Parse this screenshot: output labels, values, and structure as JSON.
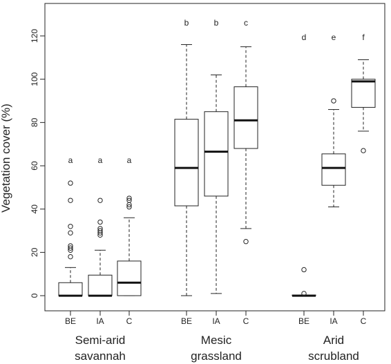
{
  "chart_data": {
    "type": "boxplot",
    "ylabel": "Vegetation cover (%)",
    "xlabel": "",
    "ylim": [
      -7,
      135
    ],
    "yticks": [
      0,
      20,
      40,
      60,
      80,
      100,
      120
    ],
    "grid": false,
    "groups": [
      {
        "name_lines": [
          "Semi-arid",
          "savannah"
        ],
        "boxes": [
          {
            "category": "BE",
            "letter": "a",
            "whisker_low": 0,
            "q1": 0,
            "median": 0,
            "q3": 6,
            "whisker_high": 13,
            "outliers": [
              18,
              21,
              22,
              23,
              29,
              32,
              44,
              52
            ]
          },
          {
            "category": "IA",
            "letter": "a",
            "whisker_low": 0,
            "q1": 0,
            "median": 0,
            "q3": 9.5,
            "whisker_high": 21,
            "outliers": [
              28,
              29,
              30,
              31,
              34,
              44
            ]
          },
          {
            "category": "C",
            "letter": "a",
            "whisker_low": 0,
            "q1": 0,
            "median": 6,
            "q3": 16,
            "whisker_high": 36,
            "outliers": [
              41,
              42,
              44,
              45
            ]
          }
        ]
      },
      {
        "name_lines": [
          "Mesic",
          "grassland"
        ],
        "boxes": [
          {
            "category": "BE",
            "letter": "b",
            "whisker_low": 0,
            "q1": 41.5,
            "median": 59,
            "q3": 81.5,
            "whisker_high": 116,
            "outliers": []
          },
          {
            "category": "IA",
            "letter": "b",
            "whisker_low": 1,
            "q1": 46,
            "median": 66.5,
            "q3": 85,
            "whisker_high": 102,
            "outliers": []
          },
          {
            "category": "C",
            "letter": "c",
            "whisker_low": 31,
            "q1": 68,
            "median": 81,
            "q3": 96.5,
            "whisker_high": 115,
            "outliers": [
              25
            ]
          }
        ]
      },
      {
        "name_lines": [
          "Arid",
          "scrubland"
        ],
        "boxes": [
          {
            "category": "BE",
            "letter": "d",
            "whisker_low": 0,
            "q1": 0,
            "median": 0,
            "q3": 0.3,
            "whisker_high": 0.3,
            "outliers": [
              1,
              12
            ]
          },
          {
            "category": "IA",
            "letter": "e",
            "whisker_low": 41,
            "q1": 51,
            "median": 59,
            "q3": 65.5,
            "whisker_high": 86,
            "outliers": [
              90
            ]
          },
          {
            "category": "C",
            "letter": "f",
            "whisker_low": 76,
            "q1": 87,
            "median": 99,
            "q3": 100,
            "whisker_high": 109,
            "outliers": [
              67
            ]
          }
        ]
      }
    ]
  }
}
